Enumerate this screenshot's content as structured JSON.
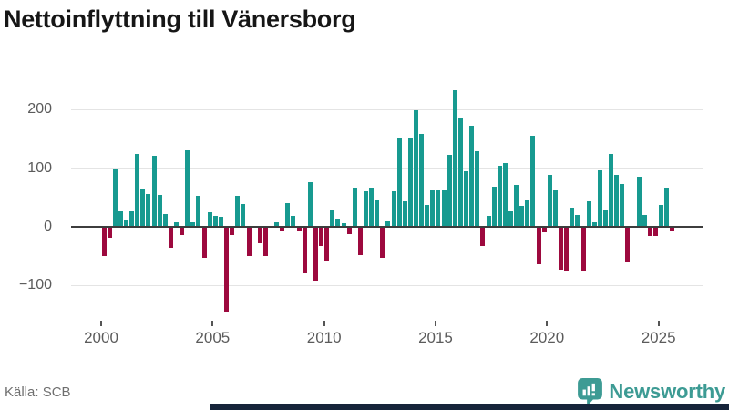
{
  "header": {
    "title": "Nettoinflyttning till Vänersborg"
  },
  "footer": {
    "source": "Källa: SCB",
    "brand": "Newsworthy",
    "brand_icon": "map-pin-with-bar-chart"
  },
  "colors": {
    "positive_bar": "#179a90",
    "negative_bar": "#9d093e",
    "zero_line": "#3d3d3d",
    "gridline": "#e4e4e4",
    "axis_text": "#5b5b5b",
    "title_text": "#161616",
    "brand_teal": "#3d9b94",
    "bottom_bar": "#16243a",
    "background": "#ffffff"
  },
  "y_axis": {
    "ticks": [
      200,
      100,
      0,
      -100
    ],
    "labels": [
      "200",
      "100",
      "0",
      "−100"
    ]
  },
  "x_axis": {
    "tick_years": [
      2000,
      2005,
      2010,
      2015,
      2020,
      2025
    ]
  },
  "chart_data": {
    "type": "bar",
    "title": "Nettoinflyttning till Vänersborg",
    "frequency": "quarterly",
    "start": "2000 Q1",
    "end": "2025 Q3",
    "xlabel": "",
    "ylabel": "",
    "ylim": [
      -160,
      245
    ],
    "grid": true,
    "legend": "none",
    "values_by_year": {
      "2000": [
        -50,
        -18,
        97,
        26
      ],
      "2001": [
        11,
        27,
        124,
        65
      ],
      "2002": [
        56,
        121,
        54,
        22
      ],
      "2003": [
        -36,
        8,
        -14,
        130
      ],
      "2004": [
        7,
        52,
        -52,
        25
      ],
      "2005": [
        18,
        17,
        -145,
        -14
      ],
      "2006": [
        52,
        39,
        -50,
        0
      ],
      "2007": [
        -28,
        -49,
        0,
        8
      ],
      "2008": [
        -7,
        41,
        19,
        -6
      ],
      "2009": [
        -79,
        76,
        -92,
        -33
      ],
      "2010": [
        -58,
        28,
        14,
        6
      ],
      "2011": [
        -13,
        67,
        -48,
        60
      ],
      "2012": [
        67,
        45,
        -53,
        10
      ],
      "2013": [
        60,
        151,
        44,
        152
      ],
      "2014": [
        198,
        159,
        37,
        62
      ],
      "2015": [
        63,
        63,
        123,
        232
      ],
      "2016": [
        186,
        95,
        172,
        129
      ],
      "2017": [
        -32,
        18,
        68,
        104
      ],
      "2018": [
        108,
        26,
        71,
        35
      ],
      "2019": [
        45,
        155,
        -63,
        -9
      ],
      "2020": [
        88,
        62,
        -73,
        -75
      ],
      "2021": [
        33,
        20,
        -75,
        44
      ],
      "2022": [
        7,
        96,
        29,
        124
      ],
      "2023": [
        89,
        73,
        -60,
        0
      ],
      "2024": [
        85,
        20,
        -16,
        -16
      ],
      "2025": [
        38,
        66,
        -8
      ]
    }
  }
}
